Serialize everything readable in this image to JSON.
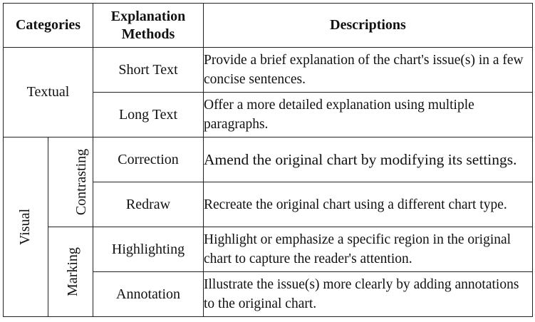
{
  "header": {
    "categories": "Categories",
    "methods_line1": "Explanation",
    "methods_line2": "Methods",
    "descriptions": "Descriptions"
  },
  "textual": {
    "category": "Textual",
    "rows": [
      {
        "method": "Short Text",
        "description": "Provide a brief explanation of the chart's issue(s) in a few concise sentences."
      },
      {
        "method": "Long Text",
        "description": "Offer a more detailed explanation using multiple paragraphs."
      }
    ]
  },
  "visual": {
    "category": "Visual",
    "contrasting": {
      "label": "Contrasting",
      "rows": [
        {
          "method": "Correction",
          "description": "Amend the original chart by modifying its settings."
        },
        {
          "method": "Redraw",
          "description": "Recreate the original chart using a different chart type."
        }
      ]
    },
    "marking": {
      "label": "Marking",
      "rows": [
        {
          "method": "Highlighting",
          "description": "Highlight or emphasize a specific region in the original chart to capture the reader's attention."
        },
        {
          "method": "Annotation",
          "description": "Illustrate the issue(s) more clearly by adding annotations to the original chart."
        }
      ]
    }
  }
}
